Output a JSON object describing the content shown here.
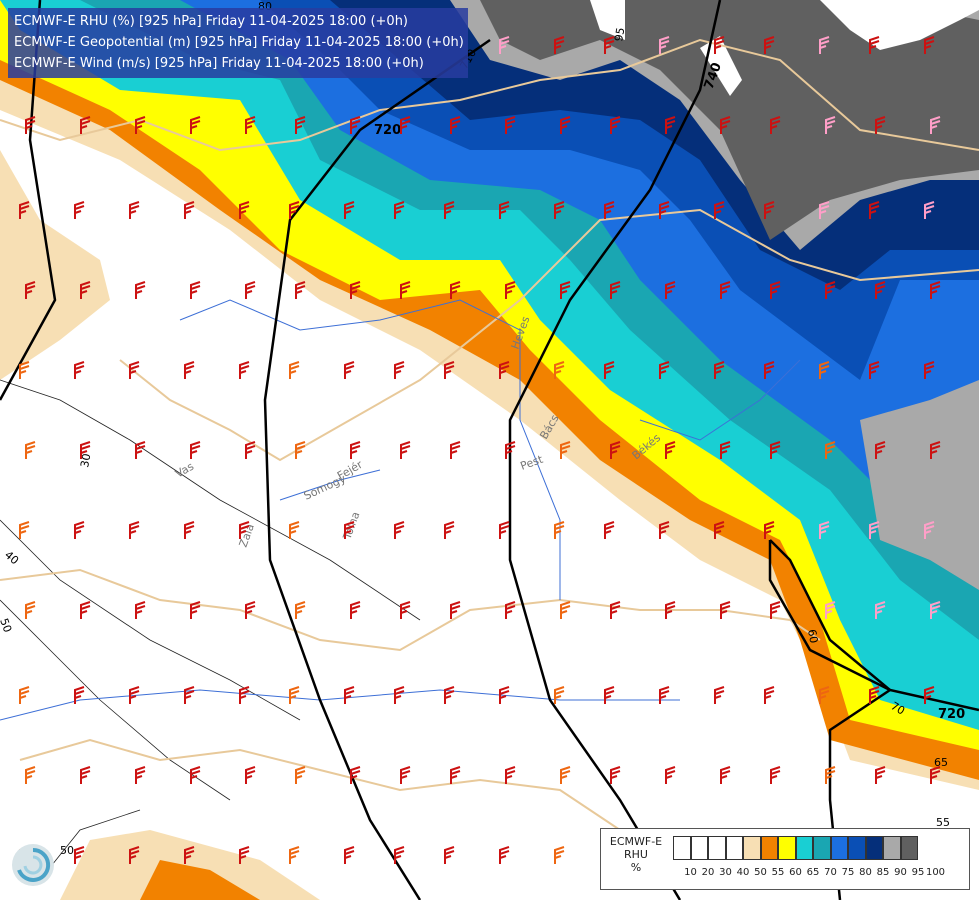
{
  "header": {
    "line1": "ECMWF-E RHU (%) [925 hPa] Friday 11-04-2025 18:00 (+0h)",
    "line2": "ECMWF-E Geopotential (m) [925 hPa] Friday 11-04-2025 18:00 (+0h)",
    "line3": "ECMWF-E Wind (m/s) [925 hPa] Friday 11-04-2025 18:00 (+0h)"
  },
  "legend": {
    "model": "ECMWF-E",
    "variable": "RHU",
    "unit": "%",
    "ticks": [
      "10",
      "20",
      "30",
      "40",
      "50",
      "55",
      "60",
      "65",
      "70",
      "75",
      "80",
      "85",
      "90",
      "95",
      "100"
    ],
    "colors": [
      "#ffffff",
      "#ffffff",
      "#ffffff",
      "#ffffff",
      "#f7dfb4",
      "#f28200",
      "#ffff00",
      "#19cfd3",
      "#1aa6b2",
      "#1c6fe0",
      "#0a4fb5",
      "#052f7a",
      "#a9a9a9",
      "#606060"
    ]
  },
  "map": {
    "geopotential_labels": [
      "710",
      "720",
      "740",
      "710",
      "720"
    ],
    "rhu_labels": [
      "30",
      "40",
      "50",
      "50",
      "60",
      "65",
      "70",
      "55",
      "80",
      "95"
    ],
    "region_labels": [
      "Vas",
      "Zala",
      "Somogy",
      "Tolna",
      "Fejér",
      "Pest",
      "Heves",
      "Békés",
      "Bács"
    ],
    "colors": {
      "band50": "#f7dfb4",
      "band55": "#f28200",
      "band60": "#ffff00",
      "band65": "#19cfd3",
      "band70": "#1aa6b2",
      "band75": "#1c6fe0",
      "band80": "#0a4fb5",
      "band85": "#052f7a",
      "band90": "#a9a9a9",
      "band95": "#606060",
      "barb_red": "#cc1111",
      "barb_orange": "#ee6611",
      "barb_pink": "#ff9fc8",
      "border": "#e8c99a",
      "river": "#3d6fd6"
    }
  }
}
